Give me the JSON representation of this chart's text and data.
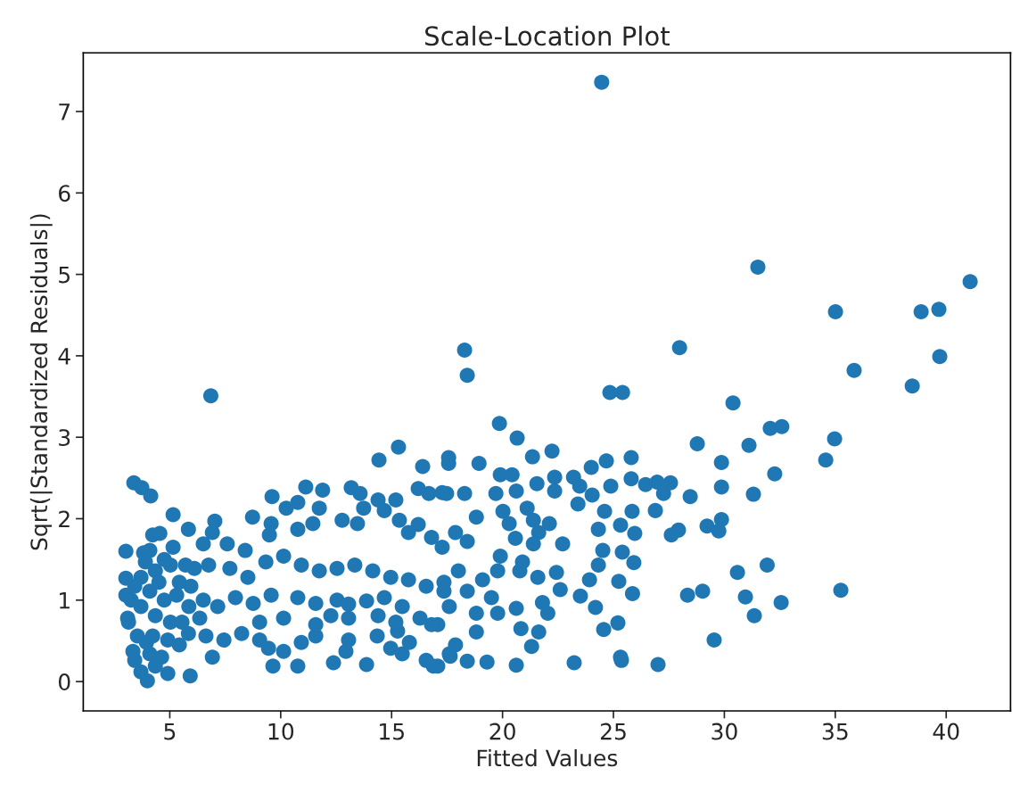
{
  "chart_data": {
    "type": "scatter",
    "title": "Scale-Location Plot",
    "xlabel": "Fitted Values",
    "ylabel": "Sqrt(|Standardized Residuals|)",
    "xlim": [
      1.1,
      42.9
    ],
    "ylim": [
      -0.36,
      7.72
    ],
    "xticks": [
      5,
      10,
      15,
      20,
      25,
      30,
      35,
      40
    ],
    "yticks": [
      0,
      1,
      2,
      3,
      4,
      5,
      6,
      7
    ],
    "grid": false,
    "marker": "circle",
    "series": [
      {
        "color": "#1f77b4",
        "x": [
          24.47,
          31.51,
          41.08,
          35.01,
          38.87,
          39.67,
          39.71,
          35.85,
          38.47,
          34.57,
          34.97,
          35.25,
          32.56,
          31.35,
          30.95,
          30.59,
          31.93,
          31.31,
          31.11,
          32.59,
          32.07,
          32.27,
          30.39,
          29.87,
          29.87,
          29.87,
          29.75,
          29.22,
          29.54,
          29.02,
          28.34,
          28.78,
          28.46,
          27.98,
          27.93,
          27.61,
          27.01,
          23.23,
          25.36,
          25.32,
          18.29,
          18.41,
          24.84,
          25.41,
          26.89,
          20.62,
          19.3,
          18.41,
          17.64,
          21.31,
          21.63,
          20.83,
          24.56,
          25.2,
          24.19,
          25.86,
          25.24,
          25.92,
          25.4,
          24.52,
          23.92,
          24.32,
          23.51,
          22.6,
          22.04,
          21.8,
          22.43,
          22.71,
          24.32,
          25.32,
          25.96,
          25.84,
          24.6,
          24.88,
          23.4,
          24.04,
          23.2,
          23.48,
          24.0,
          24.68,
          25.8,
          25.8,
          26.45,
          26.97,
          27.57,
          27.26,
          22.35,
          22.35,
          21.55,
          22.23,
          21.35,
          20.66,
          19.86,
          18.94,
          17.57,
          17.57,
          19.9,
          20.43,
          19.7,
          20.62,
          20.02,
          20.3,
          21.11,
          21.39,
          22.11,
          21.63,
          20.58,
          21.39,
          20.9,
          20.78,
          21.59,
          19.9,
          19.78,
          19.1,
          19.5,
          18.82,
          18.29,
          17.48,
          17.88,
          18.41,
          17.28,
          18.01,
          17.36,
          18.41,
          17.6,
          18.82,
          19.78,
          20.62,
          18.82,
          17.88,
          17.08,
          17.08,
          6.85,
          3.38,
          3.74,
          4.14,
          3.02,
          3.02,
          3.02,
          3.1,
          3.14,
          3.34,
          3.99,
          4.91,
          5.92,
          6.92,
          5.15,
          9.61,
          8.73,
          11.13,
          11.89,
          13.18,
          14.43,
          15.31,
          16.4,
          7.03,
          6.92,
          5.84,
          4.23,
          4.55,
          10.25,
          10.77,
          11.74,
          9.57,
          13.58,
          14.39,
          15.19,
          13.74,
          14.67,
          16.2,
          16.68,
          17.28,
          15.35,
          16.2,
          15.76,
          16.8,
          12.77,
          13.46,
          11.45,
          10.77,
          9.49,
          8.4,
          7.59,
          6.51,
          5.15,
          4.1,
          3.82,
          6.11,
          6.75,
          7.71,
          8.52,
          9.33,
          10.13,
          10.93,
          11.74,
          12.54,
          13.34,
          14.15,
          14.96,
          15.76,
          16.56,
          17.36,
          10.77,
          11.58,
          12.54,
          13.06,
          13.87,
          14.67,
          15.48,
          16.28,
          16.8,
          9.57,
          8.76,
          7.96,
          7.16,
          6.51,
          5.86,
          6.63,
          7.44,
          8.24,
          9.05,
          9.45,
          9.65,
          10.13,
          10.77,
          10.93,
          11.58,
          12.38,
          12.94,
          13.06,
          13.87,
          14.35,
          14.96,
          15.27,
          15.48,
          15.8,
          16.56,
          16.88,
          17.6,
          13.06,
          12.26,
          11.58,
          10.13,
          9.05,
          14.39,
          15.19,
          3.7,
          4.35,
          5.03,
          4.1,
          4.75,
          5.31,
          3.7,
          4.35,
          5.03,
          5.55,
          3.54,
          4.23,
          4.91,
          5.43,
          3.42,
          4.1,
          4.63,
          3.7,
          4.35,
          3.95,
          4.51,
          5.43,
          5.71,
          5.95,
          6.35,
          5.84,
          3.26,
          3.42,
          3.9,
          4.75
        ],
        "values": [
          7.36,
          5.09,
          4.91,
          4.54,
          4.54,
          4.57,
          3.99,
          3.82,
          3.63,
          2.72,
          2.98,
          1.12,
          0.97,
          0.81,
          1.04,
          1.34,
          1.43,
          2.3,
          2.9,
          3.13,
          3.11,
          2.55,
          3.42,
          1.99,
          2.69,
          2.39,
          1.85,
          1.91,
          0.51,
          1.11,
          1.06,
          2.92,
          2.27,
          4.1,
          1.86,
          1.8,
          0.21,
          0.23,
          0.26,
          0.3,
          4.07,
          3.76,
          3.55,
          3.55,
          2.1,
          0.2,
          0.24,
          0.25,
          0.31,
          0.43,
          0.61,
          0.65,
          0.64,
          0.72,
          0.91,
          1.08,
          1.23,
          1.46,
          1.59,
          1.61,
          1.25,
          1.43,
          1.05,
          1.13,
          0.84,
          0.97,
          1.34,
          1.69,
          1.87,
          1.92,
          1.82,
          2.09,
          2.09,
          2.4,
          2.18,
          2.29,
          2.51,
          2.4,
          2.63,
          2.71,
          2.75,
          2.49,
          2.42,
          2.45,
          2.44,
          2.31,
          2.51,
          2.34,
          2.43,
          2.83,
          2.76,
          2.99,
          3.17,
          2.68,
          2.75,
          2.68,
          2.54,
          2.54,
          2.31,
          2.34,
          2.09,
          1.94,
          2.13,
          1.98,
          1.94,
          1.83,
          1.76,
          1.69,
          1.47,
          1.36,
          1.28,
          1.54,
          1.36,
          1.25,
          1.03,
          2.02,
          2.31,
          2.31,
          1.83,
          1.72,
          1.65,
          1.36,
          1.22,
          1.11,
          0.92,
          0.84,
          0.84,
          0.9,
          0.61,
          0.45,
          0.7,
          0.19,
          3.51,
          2.44,
          2.38,
          2.28,
          1.6,
          1.27,
          1.06,
          0.78,
          0.73,
          0.37,
          0.01,
          0.1,
          0.07,
          0.3,
          2.05,
          2.27,
          2.02,
          2.39,
          2.35,
          2.38,
          2.72,
          2.88,
          2.64,
          1.97,
          1.83,
          1.87,
          1.8,
          1.82,
          2.13,
          2.2,
          2.13,
          1.94,
          2.31,
          2.23,
          2.23,
          2.13,
          2.1,
          2.37,
          2.31,
          2.32,
          1.98,
          1.93,
          1.83,
          1.77,
          1.98,
          1.94,
          1.94,
          1.87,
          1.8,
          1.61,
          1.69,
          1.69,
          1.65,
          1.61,
          1.58,
          1.39,
          1.43,
          1.39,
          1.28,
          1.47,
          1.54,
          1.43,
          1.36,
          1.39,
          1.43,
          1.36,
          1.28,
          1.25,
          1.17,
          1.11,
          1.03,
          0.96,
          1.0,
          0.95,
          0.99,
          1.03,
          0.92,
          0.78,
          0.7,
          1.06,
          0.96,
          1.03,
          0.92,
          1.0,
          0.92,
          0.56,
          0.51,
          0.59,
          0.51,
          0.41,
          0.19,
          0.37,
          0.19,
          0.48,
          0.56,
          0.23,
          0.37,
          0.51,
          0.21,
          0.56,
          0.41,
          0.62,
          0.34,
          0.48,
          0.26,
          0.19,
          0.34,
          0.78,
          0.81,
          0.7,
          0.78,
          0.73,
          0.81,
          0.73,
          1.28,
          1.36,
          1.43,
          1.11,
          1.0,
          1.06,
          0.92,
          0.81,
          0.73,
          0.73,
          0.56,
          0.56,
          0.51,
          0.45,
          0.26,
          0.34,
          0.3,
          0.12,
          0.19,
          0.48,
          1.22,
          1.22,
          1.43,
          1.17,
          0.78,
          0.59,
          1.0,
          1.17,
          1.47,
          1.5
        ]
      }
    ]
  }
}
